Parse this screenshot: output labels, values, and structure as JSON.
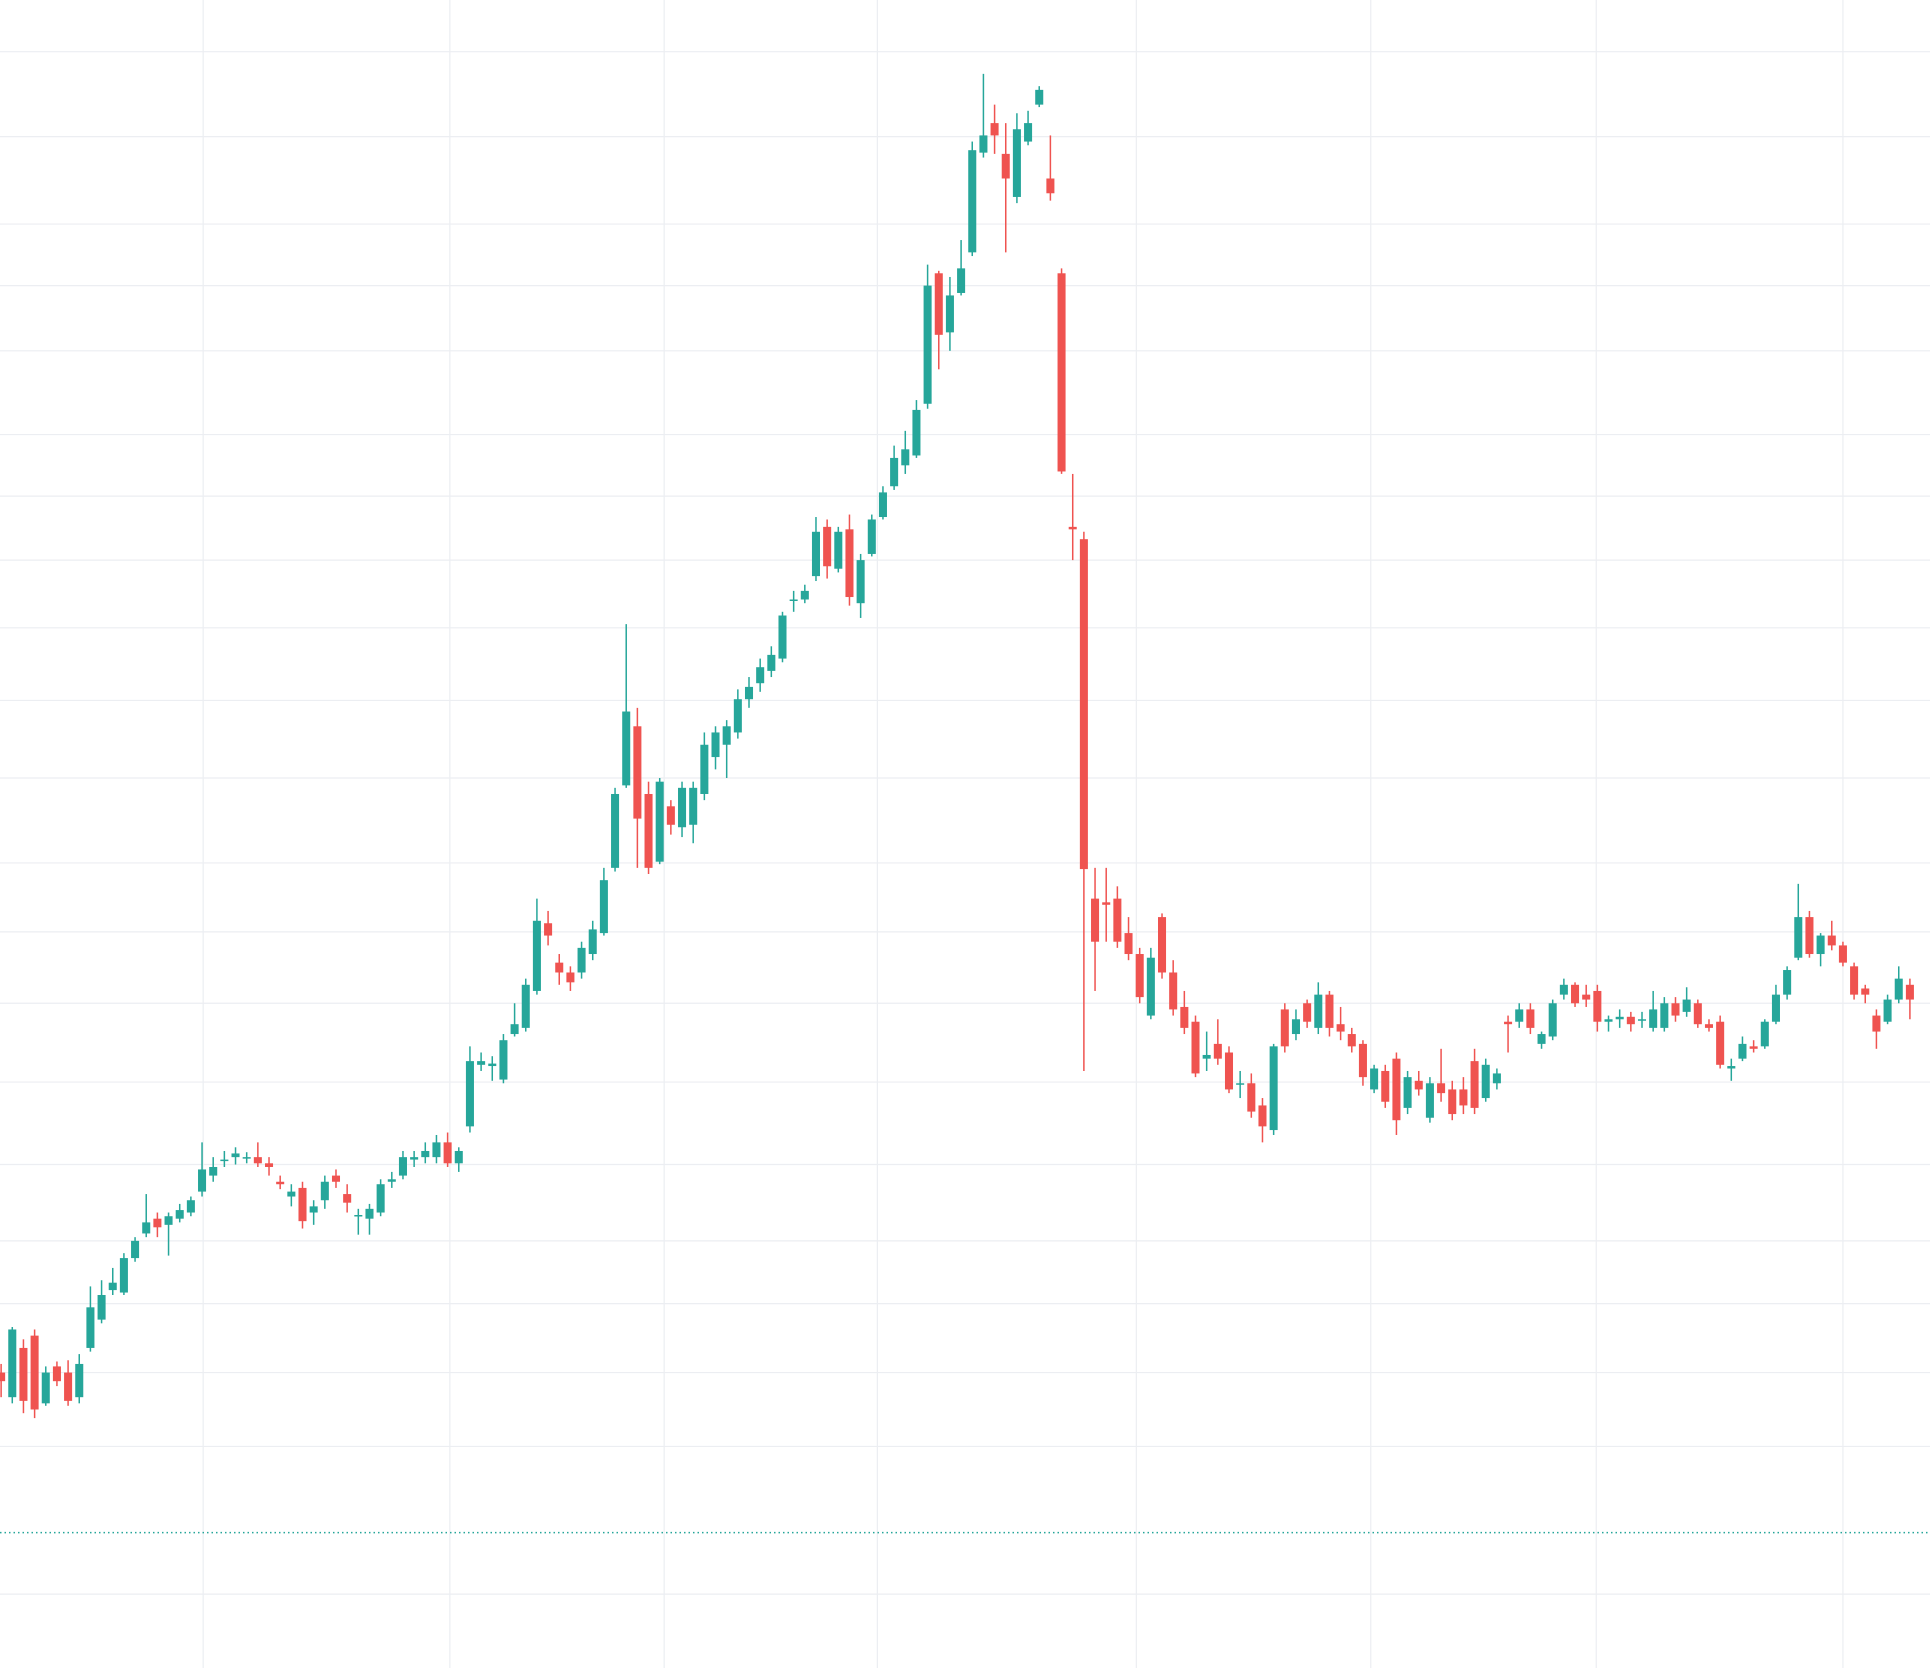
{
  "chart_data": {
    "type": "candlestick",
    "up_color": "#26a69a",
    "down_color": "#ef5350",
    "grid": true,
    "grid_color": "#eceef2",
    "price_line": 110,
    "price_line_color": "#26a69a",
    "xlim": [
      -0.1,
      172.8
    ],
    "ylim": [
      0,
      1355
    ],
    "xticks": [
      18.1,
      40.2,
      59.4,
      78.5,
      101.7,
      122.7,
      142.9,
      165.0
    ],
    "yticks": [
      1313,
      1244,
      1173,
      1123,
      1070,
      1002,
      952,
      900,
      845,
      786,
      723,
      654,
      598,
      540,
      476,
      409,
      347,
      296,
      240,
      180,
      60
    ],
    "ohlc": [
      [
        240,
        247,
        220,
        233
      ],
      [
        220,
        277,
        215,
        275
      ],
      [
        260,
        267,
        207,
        217
      ],
      [
        270,
        275,
        203,
        210
      ],
      [
        215,
        245,
        213,
        240
      ],
      [
        245,
        249,
        229,
        233
      ],
      [
        240,
        250,
        213,
        217
      ],
      [
        220,
        255,
        215,
        247
      ],
      [
        260,
        310,
        257,
        293
      ],
      [
        283,
        315,
        280,
        303
      ],
      [
        307,
        325,
        303,
        313
      ],
      [
        305,
        337,
        303,
        333
      ],
      [
        333,
        350,
        330,
        347
      ],
      [
        353,
        385,
        350,
        362
      ],
      [
        365,
        370,
        350,
        358
      ],
      [
        360,
        370,
        335,
        367
      ],
      [
        365,
        377,
        362,
        372
      ],
      [
        370,
        383,
        367,
        380
      ],
      [
        387,
        427,
        383,
        405
      ],
      [
        400,
        415,
        395,
        407
      ],
      [
        413,
        420,
        407,
        413
      ],
      [
        415,
        423,
        409,
        418
      ],
      [
        414,
        419,
        410,
        415
      ],
      [
        415,
        427,
        407,
        410
      ],
      [
        410,
        415,
        400,
        407
      ],
      [
        395,
        400,
        389,
        393
      ],
      [
        383,
        393,
        375,
        387
      ],
      [
        390,
        395,
        357,
        363
      ],
      [
        370,
        380,
        360,
        375
      ],
      [
        380,
        400,
        373,
        395
      ],
      [
        400,
        405,
        390,
        395
      ],
      [
        385,
        393,
        370,
        378
      ],
      [
        367,
        373,
        352,
        368
      ],
      [
        365,
        377,
        352,
        373
      ],
      [
        370,
        397,
        367,
        393
      ],
      [
        395,
        403,
        390,
        397
      ],
      [
        400,
        420,
        397,
        415
      ],
      [
        413,
        420,
        407,
        415
      ],
      [
        415,
        427,
        410,
        420
      ],
      [
        415,
        433,
        410,
        427
      ],
      [
        427,
        435,
        407,
        410
      ],
      [
        410,
        423,
        403,
        420
      ],
      [
        440,
        505,
        435,
        493
      ],
      [
        490,
        500,
        485,
        493
      ],
      [
        489,
        497,
        477,
        491
      ],
      [
        478,
        515,
        475,
        510
      ],
      [
        515,
        540,
        513,
        523
      ],
      [
        520,
        560,
        517,
        555
      ],
      [
        550,
        625,
        547,
        607
      ],
      [
        605,
        615,
        587,
        595
      ],
      [
        573,
        580,
        555,
        565
      ],
      [
        565,
        570,
        550,
        557
      ],
      [
        565,
        590,
        560,
        585
      ],
      [
        580,
        607,
        575,
        600
      ],
      [
        597,
        650,
        595,
        640
      ],
      [
        650,
        715,
        647,
        710
      ],
      [
        717,
        848,
        715,
        777
      ],
      [
        765,
        780,
        650,
        690
      ],
      [
        710,
        720,
        645,
        650
      ],
      [
        655,
        723,
        653,
        720
      ],
      [
        700,
        705,
        677,
        685
      ],
      [
        683,
        720,
        675,
        715
      ],
      [
        685,
        720,
        670,
        715
      ],
      [
        710,
        760,
        705,
        750
      ],
      [
        740,
        765,
        730,
        760
      ],
      [
        750,
        770,
        723,
        765
      ],
      [
        760,
        795,
        755,
        787
      ],
      [
        787,
        805,
        780,
        797
      ],
      [
        800,
        820,
        793,
        813
      ],
      [
        810,
        830,
        805,
        823
      ],
      [
        820,
        858,
        817,
        855
      ],
      [
        867,
        875,
        858,
        868
      ],
      [
        868,
        880,
        865,
        875
      ],
      [
        887,
        935,
        883,
        923
      ],
      [
        927,
        933,
        885,
        895
      ],
      [
        893,
        927,
        890,
        923
      ],
      [
        925,
        937,
        863,
        870
      ],
      [
        865,
        905,
        853,
        900
      ],
      [
        905,
        937,
        903,
        933
      ],
      [
        935,
        960,
        933,
        955
      ],
      [
        960,
        993,
        957,
        983
      ],
      [
        977,
        1005,
        970,
        990
      ],
      [
        985,
        1030,
        983,
        1022
      ],
      [
        1027,
        1140,
        1023,
        1123
      ],
      [
        1133,
        1135,
        1055,
        1083
      ],
      [
        1085,
        1130,
        1070,
        1115
      ],
      [
        1117,
        1160,
        1115,
        1137
      ],
      [
        1150,
        1240,
        1147,
        1233
      ],
      [
        1231,
        1295,
        1227,
        1245
      ],
      [
        1255,
        1270,
        1230,
        1245
      ],
      [
        1230,
        1255,
        1150,
        1210
      ],
      [
        1195,
        1263,
        1190,
        1250
      ],
      [
        1240,
        1265,
        1237,
        1255
      ],
      [
        1270,
        1285,
        1268,
        1282
      ],
      [
        1210,
        1245,
        1192,
        1198
      ],
      [
        1133,
        1137,
        970,
        972
      ],
      [
        927,
        970,
        900,
        925
      ],
      [
        917,
        923,
        485,
        649
      ],
      [
        625,
        650,
        550,
        590
      ],
      [
        622,
        650,
        590,
        620
      ],
      [
        625,
        635,
        585,
        590
      ],
      [
        597,
        610,
        575,
        580
      ],
      [
        580,
        585,
        540,
        545
      ],
      [
        530,
        585,
        527,
        577
      ],
      [
        610,
        613,
        560,
        565
      ],
      [
        565,
        575,
        530,
        535
      ],
      [
        537,
        550,
        515,
        520
      ],
      [
        525,
        530,
        480,
        483
      ],
      [
        495,
        517,
        485,
        498
      ],
      [
        507,
        527,
        490,
        495
      ],
      [
        500,
        505,
        467,
        470
      ],
      [
        475,
        485,
        463,
        475
      ],
      [
        475,
        483,
        447,
        452
      ],
      [
        457,
        463,
        427,
        440
      ],
      [
        437,
        507,
        433,
        505
      ],
      [
        535,
        540,
        500,
        505
      ],
      [
        515,
        535,
        510,
        527
      ],
      [
        540,
        543,
        520,
        525
      ],
      [
        520,
        557,
        515,
        547
      ],
      [
        547,
        550,
        513,
        520
      ],
      [
        523,
        537,
        510,
        517
      ],
      [
        515,
        520,
        500,
        505
      ],
      [
        507,
        510,
        473,
        480
      ],
      [
        470,
        490,
        467,
        487
      ],
      [
        485,
        490,
        455,
        460
      ],
      [
        495,
        500,
        433,
        445
      ],
      [
        455,
        485,
        450,
        480
      ],
      [
        477,
        485,
        465,
        470
      ],
      [
        447,
        480,
        443,
        475
      ],
      [
        475,
        503,
        460,
        467
      ],
      [
        470,
        477,
        445,
        450
      ],
      [
        470,
        480,
        450,
        457
      ],
      [
        493,
        503,
        450,
        455
      ],
      [
        463,
        495,
        460,
        490
      ],
      [
        475,
        487,
        470,
        483
      ],
      [
        525,
        530,
        500,
        523
      ],
      [
        525,
        540,
        520,
        535
      ],
      [
        535,
        540,
        515,
        520
      ],
      [
        507,
        517,
        503,
        515
      ],
      [
        513,
        543,
        510,
        540
      ],
      [
        547,
        560,
        543,
        555
      ],
      [
        555,
        557,
        537,
        540
      ],
      [
        547,
        555,
        537,
        543
      ],
      [
        550,
        555,
        517,
        525
      ],
      [
        525,
        530,
        517,
        527
      ],
      [
        527,
        535,
        520,
        529
      ],
      [
        529,
        533,
        517,
        523
      ],
      [
        527,
        533,
        520,
        527
      ],
      [
        520,
        550,
        517,
        535
      ],
      [
        520,
        545,
        517,
        540
      ],
      [
        540,
        545,
        525,
        530
      ],
      [
        533,
        553,
        529,
        543
      ],
      [
        540,
        543,
        520,
        523
      ],
      [
        523,
        527,
        517,
        520
      ],
      [
        525,
        530,
        487,
        490
      ],
      [
        487,
        495,
        477,
        489
      ],
      [
        495,
        513,
        493,
        507
      ],
      [
        505,
        510,
        500,
        503
      ],
      [
        505,
        527,
        503,
        525
      ],
      [
        525,
        555,
        523,
        547
      ],
      [
        547,
        570,
        543,
        567
      ],
      [
        577,
        637,
        575,
        610
      ],
      [
        610,
        615,
        577,
        580
      ],
      [
        580,
        597,
        570,
        595
      ],
      [
        595,
        607,
        583,
        587
      ],
      [
        587,
        590,
        570,
        573
      ],
      [
        570,
        573,
        543,
        547
      ],
      [
        552,
        555,
        540,
        547
      ],
      [
        530,
        535,
        503,
        517
      ],
      [
        525,
        547,
        523,
        543
      ],
      [
        543,
        570,
        540,
        560
      ],
      [
        555,
        560,
        527,
        543
      ]
    ]
  }
}
